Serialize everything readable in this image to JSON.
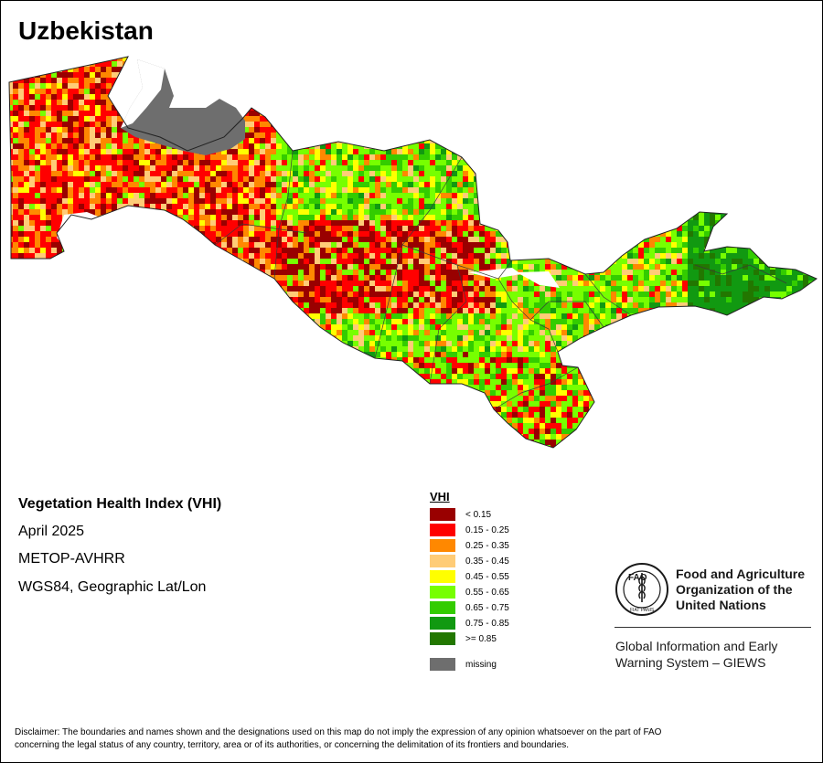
{
  "map": {
    "title": "Uzbekistan",
    "country_fill_description": "VHI raster"
  },
  "info": {
    "index_title": "Vegetation Health Index (VHI)",
    "date": "April 2025",
    "sensor": "METOP-AVHRR",
    "projection": "WGS84, Geographic Lat/Lon"
  },
  "legend": {
    "title": "VHI",
    "classes": [
      {
        "label": "< 0.15",
        "color": "#990000"
      },
      {
        "label": "0.15 - 0.25",
        "color": "#ff0000"
      },
      {
        "label": "0.25 - 0.35",
        "color": "#ff8800"
      },
      {
        "label": "0.35 - 0.45",
        "color": "#ffcc77"
      },
      {
        "label": "0.45 - 0.55",
        "color": "#ffff00"
      },
      {
        "label": "0.55 - 0.65",
        "color": "#77ff00"
      },
      {
        "label": "0.65 - 0.75",
        "color": "#33cc00"
      },
      {
        "label": "0.75 - 0.85",
        "color": "#119911"
      },
      {
        "label": ">= 0.85",
        "color": "#227700"
      }
    ],
    "missing": {
      "label": "missing",
      "color": "#6e6e6e"
    }
  },
  "organization": {
    "name_line1": "Food and Agriculture",
    "name_line2": "Organization of the",
    "name_line3": "United Nations",
    "logo_letters": "FAO",
    "logo_motto": "FIAT PANIS",
    "system_line1": "Global Information and Early",
    "system_line2": "Warning System – GIEWS"
  },
  "disclaimer": {
    "line1": "Disclaimer: The boundaries and names shown and the designations used on this map do not imply the expression of any opinion whatsoever on the part of FAO",
    "line2": "concerning the legal status of any country, territory, area or of its authorities, or concerning the delimitation of its frontiers and boundaries."
  }
}
